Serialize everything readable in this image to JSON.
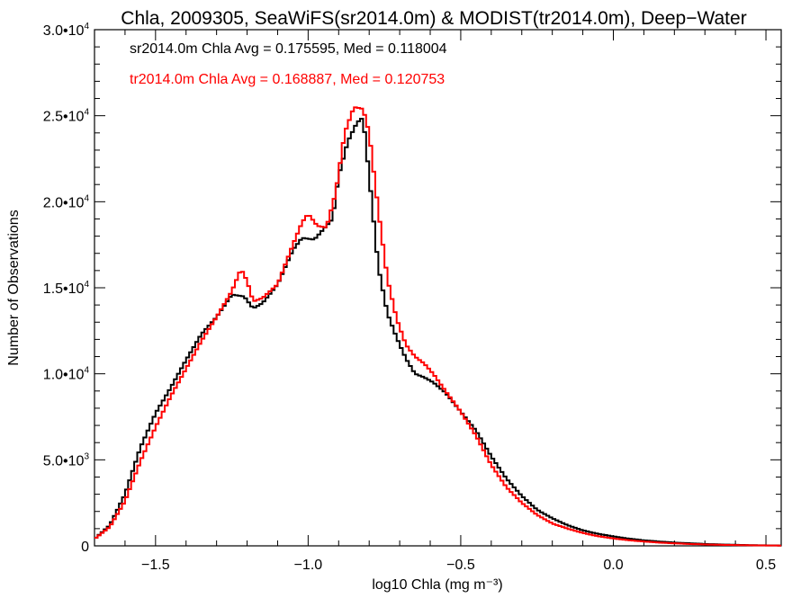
{
  "chart_data": {
    "type": "line",
    "title": "Chla, 2009305, SeaWiFS(sr2014.0m) & MODIST(tr2014.0m), Deep−Water",
    "xlabel": "log10 Chla (mg m⁻³)",
    "ylabel": "Number of Observations",
    "xlim": [
      -1.7,
      0.55
    ],
    "ylim": [
      0,
      30000
    ],
    "grid": false,
    "legend_position": "top-left",
    "x_ticks": [
      {
        "value": -1.5,
        "label": "−1.5"
      },
      {
        "value": -1.0,
        "label": "−1.0"
      },
      {
        "value": -0.5,
        "label": "−0.5"
      },
      {
        "value": 0.0,
        "label": "0.0"
      },
      {
        "value": 0.5,
        "label": "0.5"
      }
    ],
    "y_ticks": [
      {
        "value": 0,
        "mant": "0",
        "exp": ""
      },
      {
        "value": 5000,
        "mant": "5.0•10",
        "exp": "3"
      },
      {
        "value": 10000,
        "mant": "1.0•10",
        "exp": "4"
      },
      {
        "value": 15000,
        "mant": "1.5•10",
        "exp": "4"
      },
      {
        "value": 20000,
        "mant": "2.0•10",
        "exp": "4"
      },
      {
        "value": 25000,
        "mant": "2.5•10",
        "exp": "4"
      },
      {
        "value": 30000,
        "mant": "3.0•10",
        "exp": "4"
      }
    ],
    "series": [
      {
        "name": "sr2014.0m Chla Avg = 0.175595, Med = 0.118004",
        "color": "#000000",
        "points": [
          [
            -1.7,
            400
          ],
          [
            -1.65,
            1200
          ],
          [
            -1.6,
            3000
          ],
          [
            -1.55,
            5700
          ],
          [
            -1.5,
            7700
          ],
          [
            -1.45,
            9200
          ],
          [
            -1.4,
            10800
          ],
          [
            -1.35,
            12300
          ],
          [
            -1.3,
            13300
          ],
          [
            -1.25,
            14600
          ],
          [
            -1.21,
            14500
          ],
          [
            -1.18,
            13800
          ],
          [
            -1.15,
            14100
          ],
          [
            -1.1,
            15200
          ],
          [
            -1.05,
            17200
          ],
          [
            -1.02,
            17900
          ],
          [
            -0.98,
            17800
          ],
          [
            -0.95,
            18400
          ],
          [
            -0.92,
            19000
          ],
          [
            -0.9,
            21500
          ],
          [
            -0.87,
            23500
          ],
          [
            -0.84,
            24600
          ],
          [
            -0.82,
            24900
          ],
          [
            -0.8,
            21500
          ],
          [
            -0.77,
            16200
          ],
          [
            -0.74,
            13500
          ],
          [
            -0.71,
            12100
          ],
          [
            -0.68,
            10900
          ],
          [
            -0.65,
            10000
          ],
          [
            -0.62,
            9800
          ],
          [
            -0.59,
            9500
          ],
          [
            -0.55,
            8900
          ],
          [
            -0.5,
            7800
          ],
          [
            -0.45,
            6700
          ],
          [
            -0.4,
            5200
          ],
          [
            -0.35,
            3900
          ],
          [
            -0.3,
            2900
          ],
          [
            -0.25,
            2100
          ],
          [
            -0.2,
            1600
          ],
          [
            -0.15,
            1200
          ],
          [
            -0.1,
            900
          ],
          [
            -0.05,
            700
          ],
          [
            0.0,
            550
          ],
          [
            0.05,
            420
          ],
          [
            0.1,
            320
          ],
          [
            0.15,
            250
          ],
          [
            0.2,
            190
          ],
          [
            0.25,
            150
          ],
          [
            0.3,
            110
          ],
          [
            0.35,
            80
          ],
          [
            0.4,
            60
          ],
          [
            0.45,
            40
          ],
          [
            0.5,
            30
          ],
          [
            0.55,
            20
          ]
        ]
      },
      {
        "name": "tr2014.0m Chla Avg = 0.168887, Med = 0.120753",
        "color": "#ff0000",
        "points": [
          [
            -1.7,
            400
          ],
          [
            -1.65,
            1100
          ],
          [
            -1.6,
            2600
          ],
          [
            -1.55,
            4900
          ],
          [
            -1.5,
            6900
          ],
          [
            -1.45,
            8700
          ],
          [
            -1.4,
            10300
          ],
          [
            -1.35,
            11900
          ],
          [
            -1.3,
            13300
          ],
          [
            -1.25,
            14800
          ],
          [
            -1.22,
            16100
          ],
          [
            -1.2,
            15400
          ],
          [
            -1.18,
            14200
          ],
          [
            -1.15,
            14400
          ],
          [
            -1.1,
            15200
          ],
          [
            -1.05,
            17500
          ],
          [
            -1.02,
            18800
          ],
          [
            -1.0,
            19300
          ],
          [
            -0.97,
            18600
          ],
          [
            -0.94,
            18500
          ],
          [
            -0.91,
            20500
          ],
          [
            -0.88,
            24000
          ],
          [
            -0.85,
            25500
          ],
          [
            -0.82,
            25400
          ],
          [
            -0.8,
            24000
          ],
          [
            -0.77,
            19500
          ],
          [
            -0.74,
            15500
          ],
          [
            -0.71,
            13200
          ],
          [
            -0.68,
            11700
          ],
          [
            -0.65,
            11000
          ],
          [
            -0.62,
            10600
          ],
          [
            -0.59,
            10000
          ],
          [
            -0.55,
            9000
          ],
          [
            -0.5,
            7800
          ],
          [
            -0.45,
            6400
          ],
          [
            -0.4,
            4700
          ],
          [
            -0.35,
            3400
          ],
          [
            -0.3,
            2500
          ],
          [
            -0.25,
            1800
          ],
          [
            -0.2,
            1300
          ],
          [
            -0.15,
            1000
          ],
          [
            -0.1,
            750
          ],
          [
            -0.05,
            560
          ],
          [
            0.0,
            430
          ],
          [
            0.05,
            330
          ],
          [
            0.1,
            250
          ],
          [
            0.15,
            190
          ],
          [
            0.2,
            145
          ],
          [
            0.25,
            110
          ],
          [
            0.3,
            80
          ],
          [
            0.35,
            60
          ],
          [
            0.4,
            45
          ],
          [
            0.45,
            32
          ],
          [
            0.5,
            22
          ],
          [
            0.55,
            15
          ]
        ]
      }
    ]
  }
}
